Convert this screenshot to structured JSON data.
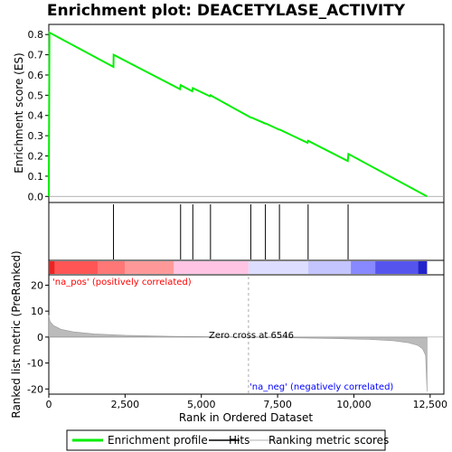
{
  "chart_data": {
    "type": "line",
    "title": "Enrichment plot: DEACETYLASE_ACTIVITY",
    "top_panel": {
      "ylabel": "Enrichment score (ES)",
      "ylim": [
        -0.03,
        0.85
      ],
      "yticks": [
        "0.0",
        "0.1",
        "0.2",
        "0.3",
        "0.4",
        "0.5",
        "0.6",
        "0.7",
        "0.8"
      ],
      "es_profile": {
        "name": "Enrichment profile",
        "color": "#00ee00",
        "points": [
          [
            0,
            0.0
          ],
          [
            20,
            0.81
          ],
          [
            2120,
            0.64
          ],
          [
            2125,
            0.7
          ],
          [
            4300,
            0.53
          ],
          [
            4320,
            0.55
          ],
          [
            4700,
            0.52
          ],
          [
            4720,
            0.535
          ],
          [
            5280,
            0.495
          ],
          [
            5300,
            0.5
          ],
          [
            6620,
            0.39
          ],
          [
            6640,
            0.39
          ],
          [
            7100,
            0.36
          ],
          [
            7120,
            0.36
          ],
          [
            7550,
            0.33
          ],
          [
            7570,
            0.33
          ],
          [
            8480,
            0.265
          ],
          [
            8500,
            0.275
          ],
          [
            9800,
            0.175
          ],
          [
            9820,
            0.21
          ],
          [
            12400,
            0.0
          ]
        ]
      },
      "hits": [
        2120,
        4320,
        4720,
        5300,
        6620,
        7100,
        7560,
        8500,
        9810
      ]
    },
    "middle_panel": {
      "gradient_segments": [
        {
          "from": 0,
          "to": 200,
          "color": "#ee2222"
        },
        {
          "from": 200,
          "to": 1600,
          "color": "#ff5555"
        },
        {
          "from": 1600,
          "to": 2500,
          "color": "#ff7777"
        },
        {
          "from": 2500,
          "to": 4100,
          "color": "#ff9999"
        },
        {
          "from": 4100,
          "to": 6546,
          "color": "#ffc4e4"
        },
        {
          "from": 6546,
          "to": 8500,
          "color": "#ddddff"
        },
        {
          "from": 8500,
          "to": 9900,
          "color": "#c4c4ff"
        },
        {
          "from": 9900,
          "to": 10700,
          "color": "#8888ff"
        },
        {
          "from": 10700,
          "to": 12100,
          "color": "#5555ee"
        },
        {
          "from": 12100,
          "to": 12400,
          "color": "#2222cc"
        }
      ]
    },
    "bottom_panel": {
      "ylabel": "Ranked list metric (PreRanked)",
      "ylim": [
        -22,
        24
      ],
      "yticks": [
        "20",
        "10",
        "0",
        "-10",
        "-20"
      ],
      "pos_label": "'na_pos' (positively correlated)",
      "neg_label": "'na_neg' (negatively correlated)",
      "zero_cross_label": "Zero cross at 6546",
      "zero_cross": 6546,
      "metric_curve": [
        [
          0,
          8.5
        ],
        [
          40,
          6.0
        ],
        [
          150,
          4.5
        ],
        [
          400,
          3.0
        ],
        [
          800,
          2.0
        ],
        [
          1500,
          1.2
        ],
        [
          2500,
          0.7
        ],
        [
          4000,
          0.3
        ],
        [
          5500,
          0.1
        ],
        [
          6546,
          0.0
        ],
        [
          8000,
          -0.3
        ],
        [
          9500,
          -0.6
        ],
        [
          10500,
          -0.9
        ],
        [
          11300,
          -1.4
        ],
        [
          11800,
          -2.2
        ],
        [
          12100,
          -3.2
        ],
        [
          12250,
          -4.5
        ],
        [
          12350,
          -7.0
        ],
        [
          12400,
          -21.0
        ]
      ],
      "colors": {
        "pos_label": "#ff0000",
        "neg_label": "#0000ff",
        "fill": "#bbbbbb"
      }
    },
    "x_axis": {
      "xlabel": "Rank in Ordered Dataset",
      "xlim": [
        0,
        12950
      ],
      "ticks": [
        0,
        2500,
        5000,
        7500,
        10000,
        12500
      ],
      "tick_labels": [
        "0",
        "2,500",
        "5,000",
        "7,500",
        "10,000",
        "12,500"
      ]
    },
    "legend": {
      "placement": "bottom",
      "entries": [
        "Enrichment profile",
        "Hits",
        "Ranking metric scores"
      ]
    }
  }
}
